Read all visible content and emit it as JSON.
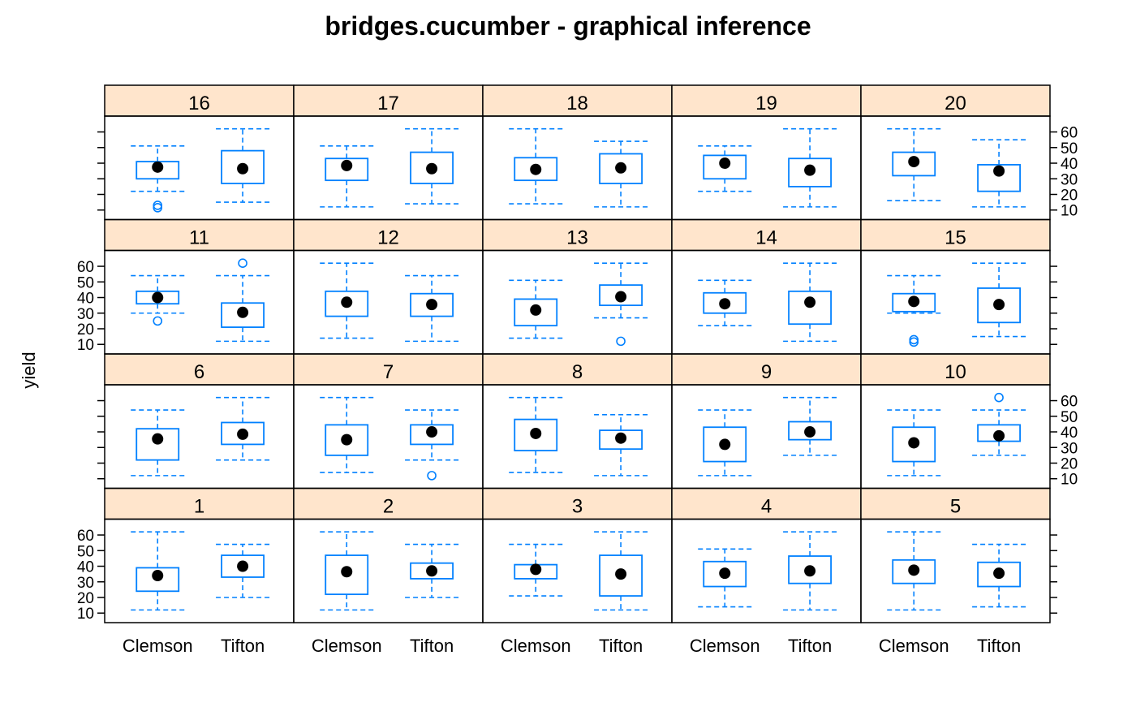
{
  "chart_data": {
    "type": "boxplot",
    "title": "bridges.cucumber - graphical inference",
    "ylabel": "yield",
    "xlabel": "",
    "categories": [
      "Clemson",
      "Tifton"
    ],
    "ylim": [
      7,
      66
    ],
    "yticks": [
      10,
      20,
      30,
      40,
      50,
      60
    ],
    "grid": false,
    "layout": {
      "columns": 5,
      "rows": 4
    },
    "colors": {
      "box": "#0080ff",
      "median": "#000000",
      "strip": "#ffe5cc",
      "frame": "#000000"
    },
    "panels": [
      {
        "label": "1",
        "boxes": [
          {
            "min": 12,
            "q1": 24,
            "median": 34,
            "q3": 39,
            "max": 62,
            "outliers": []
          },
          {
            "min": 20,
            "q1": 33,
            "median": 40,
            "q3": 47,
            "max": 54,
            "outliers": []
          }
        ]
      },
      {
        "label": "2",
        "boxes": [
          {
            "min": 12,
            "q1": 22,
            "median": 36.5,
            "q3": 47,
            "max": 62,
            "outliers": []
          },
          {
            "min": 20,
            "q1": 32,
            "median": 37,
            "q3": 42,
            "max": 54,
            "outliers": []
          }
        ]
      },
      {
        "label": "3",
        "boxes": [
          {
            "min": 21,
            "q1": 32,
            "median": 38,
            "q3": 41,
            "max": 54,
            "outliers": []
          },
          {
            "min": 12,
            "q1": 21,
            "median": 35,
            "q3": 47,
            "max": 62,
            "outliers": []
          }
        ]
      },
      {
        "label": "4",
        "boxes": [
          {
            "min": 14,
            "q1": 27,
            "median": 35.5,
            "q3": 43,
            "max": 51,
            "outliers": []
          },
          {
            "min": 12,
            "q1": 29,
            "median": 37,
            "q3": 46.5,
            "max": 62,
            "outliers": []
          }
        ]
      },
      {
        "label": "5",
        "boxes": [
          {
            "min": 12,
            "q1": 29,
            "median": 37.5,
            "q3": 44,
            "max": 62,
            "outliers": []
          },
          {
            "min": 14,
            "q1": 27,
            "median": 35.5,
            "q3": 42.5,
            "max": 54,
            "outliers": []
          }
        ]
      },
      {
        "label": "6",
        "boxes": [
          {
            "min": 12,
            "q1": 22,
            "median": 35.5,
            "q3": 42,
            "max": 54,
            "outliers": []
          },
          {
            "min": 22,
            "q1": 32,
            "median": 38.5,
            "q3": 46,
            "max": 62,
            "outliers": []
          }
        ]
      },
      {
        "label": "7",
        "boxes": [
          {
            "min": 14,
            "q1": 25,
            "median": 35,
            "q3": 44.5,
            "max": 62,
            "outliers": []
          },
          {
            "min": 22,
            "q1": 32,
            "median": 40,
            "q3": 44.5,
            "max": 54,
            "outliers": [
              12
            ]
          }
        ]
      },
      {
        "label": "8",
        "boxes": [
          {
            "min": 14,
            "q1": 28,
            "median": 39,
            "q3": 48,
            "max": 62,
            "outliers": []
          },
          {
            "min": 12,
            "q1": 29,
            "median": 36,
            "q3": 41,
            "max": 51,
            "outliers": []
          }
        ]
      },
      {
        "label": "9",
        "boxes": [
          {
            "min": 12,
            "q1": 21,
            "median": 32,
            "q3": 43,
            "max": 54,
            "outliers": []
          },
          {
            "min": 25,
            "q1": 35,
            "median": 40,
            "q3": 46.5,
            "max": 62,
            "outliers": []
          }
        ]
      },
      {
        "label": "10",
        "boxes": [
          {
            "min": 12,
            "q1": 21,
            "median": 33,
            "q3": 43,
            "max": 54,
            "outliers": []
          },
          {
            "min": 25,
            "q1": 34,
            "median": 37.5,
            "q3": 44.5,
            "max": 54,
            "outliers": [
              62
            ]
          }
        ]
      },
      {
        "label": "11",
        "boxes": [
          {
            "min": 30,
            "q1": 36,
            "median": 40,
            "q3": 44,
            "max": 54,
            "outliers": [
              25
            ]
          },
          {
            "min": 12,
            "q1": 21,
            "median": 30.5,
            "q3": 36.5,
            "max": 54,
            "outliers": [
              62
            ]
          }
        ]
      },
      {
        "label": "12",
        "boxes": [
          {
            "min": 14,
            "q1": 28,
            "median": 37,
            "q3": 44,
            "max": 62,
            "outliers": []
          },
          {
            "min": 12,
            "q1": 28,
            "median": 35.5,
            "q3": 42.5,
            "max": 54,
            "outliers": []
          }
        ]
      },
      {
        "label": "13",
        "boxes": [
          {
            "min": 14,
            "q1": 22,
            "median": 32,
            "q3": 39,
            "max": 51,
            "outliers": []
          },
          {
            "min": 27,
            "q1": 35,
            "median": 40.5,
            "q3": 48,
            "max": 62,
            "outliers": [
              12
            ]
          }
        ]
      },
      {
        "label": "14",
        "boxes": [
          {
            "min": 22,
            "q1": 30,
            "median": 36,
            "q3": 43,
            "max": 51,
            "outliers": []
          },
          {
            "min": 12,
            "q1": 23,
            "median": 37,
            "q3": 44,
            "max": 62,
            "outliers": []
          }
        ]
      },
      {
        "label": "15",
        "boxes": [
          {
            "min": 30,
            "q1": 31,
            "median": 37.5,
            "q3": 42.5,
            "max": 54,
            "outliers": [
              13,
              11.5
            ]
          },
          {
            "min": 15,
            "q1": 24,
            "median": 35.5,
            "q3": 46,
            "max": 62,
            "outliers": []
          }
        ]
      },
      {
        "label": "16",
        "boxes": [
          {
            "min": 22,
            "q1": 30,
            "median": 37.5,
            "q3": 41,
            "max": 51,
            "outliers": [
              13,
              11.5
            ]
          },
          {
            "min": 15,
            "q1": 27,
            "median": 36.5,
            "q3": 48,
            "max": 62,
            "outliers": []
          }
        ]
      },
      {
        "label": "17",
        "boxes": [
          {
            "min": 12,
            "q1": 29,
            "median": 38.5,
            "q3": 43,
            "max": 51,
            "outliers": []
          },
          {
            "min": 14,
            "q1": 27,
            "median": 36.5,
            "q3": 47,
            "max": 62,
            "outliers": []
          }
        ]
      },
      {
        "label": "18",
        "boxes": [
          {
            "min": 14,
            "q1": 29,
            "median": 36,
            "q3": 43.5,
            "max": 62,
            "outliers": []
          },
          {
            "min": 12,
            "q1": 27,
            "median": 37,
            "q3": 46,
            "max": 54,
            "outliers": []
          }
        ]
      },
      {
        "label": "19",
        "boxes": [
          {
            "min": 22,
            "q1": 30,
            "median": 40,
            "q3": 45,
            "max": 51,
            "outliers": []
          },
          {
            "min": 12,
            "q1": 25,
            "median": 35.5,
            "q3": 43,
            "max": 62,
            "outliers": []
          }
        ]
      },
      {
        "label": "20",
        "boxes": [
          {
            "min": 16,
            "q1": 32,
            "median": 41,
            "q3": 47,
            "max": 62,
            "outliers": []
          },
          {
            "min": 12,
            "q1": 22,
            "median": 35,
            "q3": 39,
            "max": 55,
            "outliers": []
          }
        ]
      }
    ]
  }
}
